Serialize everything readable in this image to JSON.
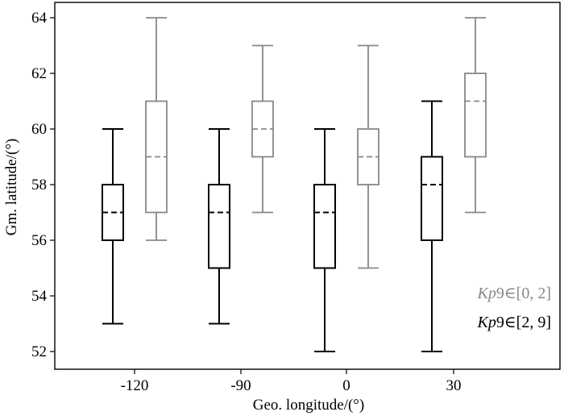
{
  "chart_data": {
    "type": "boxplot",
    "title": "",
    "xlabel": "Geo. longitude/(°)",
    "ylabel": "Gm. latitude/(°)",
    "ylim": [
      51.5,
      64.5
    ],
    "yticks": [
      52,
      54,
      56,
      58,
      60,
      62,
      64
    ],
    "categories": [
      "-120",
      "-90",
      "0",
      "30"
    ],
    "legend": {
      "placement": "bottom-right",
      "entries": [
        {
          "var": "Kp",
          "suffix": "9∈[0, 2]",
          "color": "#888888"
        },
        {
          "var": "Kp",
          "suffix": "9∈[2, 9]",
          "color": "#000000"
        }
      ]
    },
    "series": [
      {
        "name": "Kp9∈[2, 9]",
        "color": "#000000",
        "boxes": [
          {
            "min": 53,
            "q1": 56,
            "median": 57,
            "q3": 58,
            "max": 60
          },
          {
            "min": 53,
            "q1": 55,
            "median": 57,
            "q3": 58,
            "max": 60
          },
          {
            "min": 52,
            "q1": 55,
            "median": 57,
            "q3": 58,
            "max": 60
          },
          {
            "min": 52,
            "q1": 56,
            "median": 58,
            "q3": 59,
            "max": 61
          }
        ]
      },
      {
        "name": "Kp9∈[0, 2]",
        "color": "#888888",
        "boxes": [
          {
            "min": 56,
            "q1": 57,
            "median": 59,
            "q3": 61,
            "max": 64
          },
          {
            "min": 57,
            "q1": 59,
            "median": 60,
            "q3": 61,
            "max": 63
          },
          {
            "min": 55,
            "q1": 58,
            "median": 59,
            "q3": 60,
            "max": 63
          },
          {
            "min": 57,
            "q1": 59,
            "median": 61,
            "q3": 62,
            "max": 64
          }
        ]
      }
    ]
  }
}
